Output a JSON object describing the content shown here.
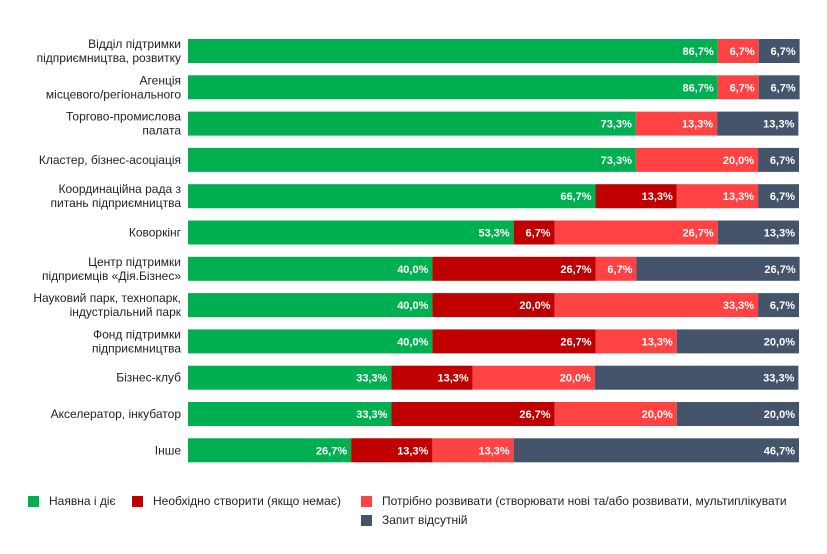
{
  "chart_data": {
    "type": "bar",
    "orientation": "horizontal",
    "stacked": true,
    "title": "",
    "xlabel": "",
    "ylabel": "",
    "xlim": [
      0,
      100
    ],
    "grid": false,
    "legend_position": "bottom",
    "categories": [
      [
        "Відділ підтримки",
        "підприємництва, розвитку"
      ],
      [
        "Агенція",
        "місцевого/регіонального"
      ],
      [
        "Торгово-промислова",
        "палата"
      ],
      [
        "Кластер, бізнес-асоціація"
      ],
      [
        "Координаційна рада з",
        "питань підприємництва"
      ],
      [
        "Коворкінг"
      ],
      [
        "Центр підтримки",
        "підприємців «Дія.Бізнес»"
      ],
      [
        "Науковий парк, технопарк,",
        "індустріальний парк"
      ],
      [
        "Фонд підтримки",
        "підприємництва"
      ],
      [
        "Бізнес-клуб"
      ],
      [
        "Акселератор, інкубатор"
      ],
      [
        "Інше"
      ]
    ],
    "series": [
      {
        "name": "Наявна і діє",
        "color": "#00b050",
        "values": [
          86.7,
          86.7,
          73.3,
          73.3,
          66.7,
          53.3,
          40.0,
          40.0,
          40.0,
          33.3,
          33.3,
          26.7
        ]
      },
      {
        "name": "Необхідно створити (якщо немає)",
        "color": "#c00000",
        "values": [
          0,
          0,
          0,
          0,
          13.3,
          6.7,
          26.7,
          20.0,
          26.7,
          13.3,
          26.7,
          13.3
        ]
      },
      {
        "name": "Потрібно розвивати (створювати нові та/або розвивати, мультиплікувати",
        "color": "#ff4343",
        "values": [
          6.7,
          6.7,
          13.3,
          20.0,
          13.3,
          26.7,
          6.7,
          33.3,
          13.3,
          20.0,
          20.0,
          13.3
        ]
      },
      {
        "name": "Запит відсутній",
        "color": "#44546a",
        "values": [
          6.7,
          6.7,
          13.3,
          6.7,
          6.7,
          13.3,
          26.7,
          6.7,
          20.0,
          33.3,
          20.0,
          46.7
        ]
      }
    ]
  }
}
